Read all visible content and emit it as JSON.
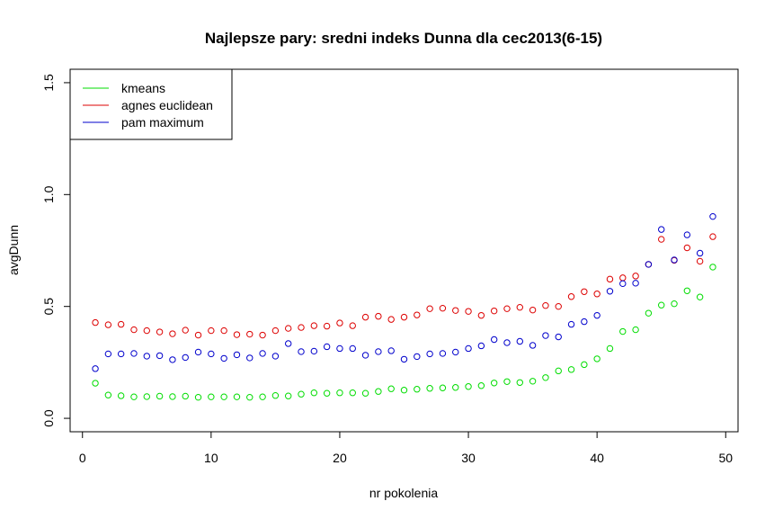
{
  "chart_data": {
    "type": "scatter",
    "title": "Najlepsze pary: sredni indeks Dunna dla cec2013(6-15)",
    "xlabel": "nr pokolenia",
    "ylabel": "avgDunn",
    "xlim": [
      -0.96,
      50.96
    ],
    "ylim": [
      -0.06,
      1.56
    ],
    "xticks": [
      0,
      10,
      20,
      30,
      40,
      50
    ],
    "yticks": [
      0.0,
      0.5,
      1.0,
      1.5
    ],
    "xtick_labels": [
      "0",
      "10",
      "20",
      "30",
      "40",
      "50"
    ],
    "ytick_labels": [
      "0.0",
      "0.5",
      "1.0",
      "1.5"
    ],
    "grid": false,
    "legend_position": "top-left",
    "x": [
      1,
      2,
      3,
      4,
      5,
      6,
      7,
      8,
      9,
      10,
      11,
      12,
      13,
      14,
      15,
      16,
      17,
      18,
      19,
      20,
      21,
      22,
      23,
      24,
      25,
      26,
      27,
      28,
      29,
      30,
      31,
      32,
      33,
      34,
      35,
      36,
      37,
      38,
      39,
      40,
      41,
      42,
      43,
      44,
      45,
      46,
      47,
      48,
      49
    ],
    "series": [
      {
        "name": "kmeans",
        "color": "#00dd00",
        "values": [
          0.157,
          0.104,
          0.101,
          0.096,
          0.097,
          0.099,
          0.097,
          0.099,
          0.094,
          0.096,
          0.096,
          0.096,
          0.094,
          0.096,
          0.102,
          0.1,
          0.108,
          0.114,
          0.112,
          0.114,
          0.114,
          0.112,
          0.12,
          0.132,
          0.126,
          0.13,
          0.134,
          0.136,
          0.138,
          0.142,
          0.146,
          0.158,
          0.164,
          0.16,
          0.166,
          0.182,
          0.212,
          0.218,
          0.24,
          0.266,
          0.312,
          0.388,
          0.396,
          0.47,
          0.506,
          0.512,
          0.57,
          0.542,
          0.676
        ]
      },
      {
        "name": "agnes euclidean",
        "color": "#dd0000",
        "values": [
          0.428,
          0.418,
          0.42,
          0.396,
          0.392,
          0.386,
          0.378,
          0.394,
          0.372,
          0.392,
          0.392,
          0.374,
          0.376,
          0.372,
          0.392,
          0.402,
          0.406,
          0.414,
          0.412,
          0.426,
          0.414,
          0.452,
          0.456,
          0.442,
          0.452,
          0.462,
          0.49,
          0.492,
          0.482,
          0.478,
          0.46,
          0.48,
          0.49,
          0.496,
          0.484,
          0.504,
          0.5,
          0.544,
          0.566,
          0.556,
          0.622,
          0.628,
          0.636,
          0.688,
          0.8,
          0.706,
          0.762,
          0.702,
          0.812
        ]
      },
      {
        "name": "pam maximum",
        "color": "#0000cc",
        "values": [
          0.222,
          0.288,
          0.288,
          0.29,
          0.278,
          0.28,
          0.262,
          0.272,
          0.296,
          0.288,
          0.268,
          0.284,
          0.27,
          0.29,
          0.278,
          0.334,
          0.298,
          0.3,
          0.32,
          0.312,
          0.312,
          0.282,
          0.298,
          0.302,
          0.264,
          0.276,
          0.288,
          0.29,
          0.296,
          0.312,
          0.324,
          0.352,
          0.338,
          0.344,
          0.326,
          0.37,
          0.364,
          0.42,
          0.432,
          0.46,
          0.568,
          0.602,
          0.604,
          0.688,
          0.844,
          0.708,
          0.82,
          0.738,
          0.902
        ]
      }
    ]
  }
}
